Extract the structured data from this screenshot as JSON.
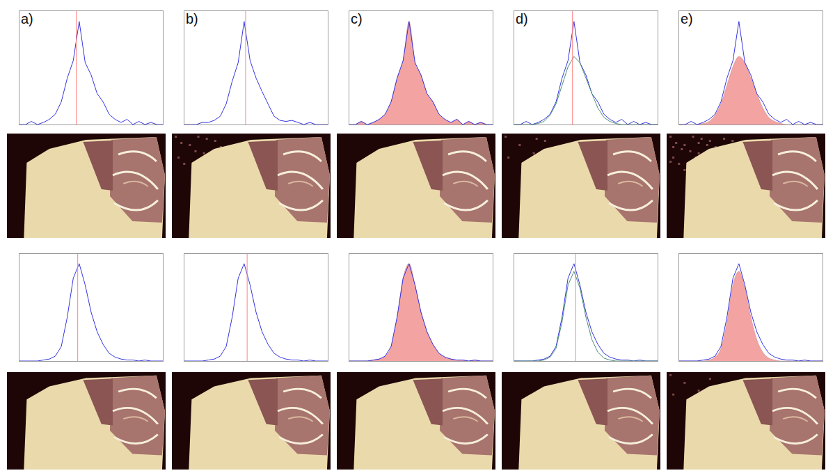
{
  "panel_labels": [
    "a)",
    "b)",
    "c)",
    "d)",
    "e)"
  ],
  "chart_data": [
    {
      "type": "line",
      "tick_labels": false,
      "xlim": [
        0,
        48
      ],
      "ylim": [
        0,
        1.1
      ],
      "x": [
        0,
        2,
        4,
        6,
        8,
        10,
        12,
        14,
        16,
        18,
        20,
        22,
        24,
        26,
        28,
        30,
        32,
        34,
        36,
        38,
        40,
        42,
        44,
        46,
        48
      ],
      "series": [
        {
          "type": "line",
          "color": "#3535e0",
          "values": [
            0,
            0,
            0.03,
            0,
            0.02,
            0.05,
            0.1,
            0.22,
            0.45,
            0.62,
            1.0,
            0.6,
            0.48,
            0.3,
            0.22,
            0.1,
            0.05,
            0.02,
            0.05,
            0,
            0.03,
            0,
            0.02,
            0,
            0
          ]
        }
      ],
      "vline": {
        "x": 19,
        "color": "#ff8080"
      }
    },
    {
      "type": "line",
      "tick_labels": false,
      "xlim": [
        0,
        48
      ],
      "ylim": [
        0,
        1.1
      ],
      "x": [
        0,
        2,
        4,
        6,
        8,
        10,
        12,
        14,
        16,
        18,
        20,
        22,
        24,
        26,
        28,
        30,
        32,
        34,
        36,
        38,
        40,
        42,
        44,
        46,
        48
      ],
      "series": [
        {
          "type": "line",
          "color": "#3535e0",
          "values": [
            0,
            0,
            0,
            0.02,
            0.02,
            0.04,
            0.08,
            0.2,
            0.42,
            0.6,
            1.0,
            0.62,
            0.45,
            0.32,
            0.2,
            0.08,
            0.04,
            0.03,
            0.04,
            0.02,
            0,
            0.02,
            0,
            0,
            0
          ]
        }
      ],
      "vline": {
        "x": 20.5,
        "color": "#ff8080"
      }
    },
    {
      "type": "line",
      "tick_labels": false,
      "xlim": [
        0,
        48
      ],
      "ylim": [
        0,
        1.1
      ],
      "x": [
        0,
        2,
        4,
        6,
        8,
        10,
        12,
        14,
        16,
        18,
        20,
        22,
        24,
        26,
        28,
        30,
        32,
        34,
        36,
        38,
        40,
        42,
        44,
        46,
        48
      ],
      "series": [
        {
          "type": "area",
          "color": "#f4a3a3",
          "values": [
            0,
            0,
            0.03,
            0,
            0.02,
            0.05,
            0.1,
            0.22,
            0.45,
            0.62,
            1.0,
            0.6,
            0.48,
            0.3,
            0.22,
            0.1,
            0.05,
            0.02,
            0.05,
            0,
            0.03,
            0,
            0.02,
            0,
            0
          ]
        },
        {
          "type": "line",
          "color": "#3535e0",
          "values": [
            0,
            0,
            0.03,
            0,
            0.02,
            0.05,
            0.1,
            0.22,
            0.45,
            0.62,
            1.0,
            0.6,
            0.48,
            0.3,
            0.22,
            0.1,
            0.05,
            0.02,
            0.05,
            0,
            0.03,
            0,
            0.02,
            0,
            0
          ]
        }
      ]
    },
    {
      "type": "line",
      "tick_labels": false,
      "xlim": [
        0,
        48
      ],
      "ylim": [
        0,
        1.1
      ],
      "x": [
        0,
        2,
        4,
        6,
        8,
        10,
        12,
        14,
        16,
        18,
        20,
        22,
        24,
        26,
        28,
        30,
        32,
        34,
        36,
        38,
        40,
        42,
        44,
        46,
        48
      ],
      "series": [
        {
          "type": "line",
          "color": "#3535e0",
          "values": [
            0,
            0,
            0.03,
            0,
            0.02,
            0.05,
            0.1,
            0.22,
            0.45,
            0.62,
            1.0,
            0.6,
            0.48,
            0.3,
            0.22,
            0.1,
            0.05,
            0.02,
            0.05,
            0,
            0.03,
            0,
            0.02,
            0,
            0
          ]
        },
        {
          "type": "line",
          "color": "#4e8f78",
          "values": [
            0,
            0,
            0,
            0,
            0.01,
            0.03,
            0.09,
            0.2,
            0.38,
            0.56,
            0.66,
            0.6,
            0.45,
            0.3,
            0.16,
            0.07,
            0.03,
            0.01,
            0,
            0,
            0,
            0,
            0,
            0,
            0
          ]
        }
      ],
      "vline": {
        "x": 19.5,
        "color": "#ff8080"
      }
    },
    {
      "type": "line",
      "tick_labels": false,
      "xlim": [
        0,
        48
      ],
      "ylim": [
        0,
        1.1
      ],
      "x": [
        0,
        2,
        4,
        6,
        8,
        10,
        12,
        14,
        16,
        18,
        20,
        22,
        24,
        26,
        28,
        30,
        32,
        34,
        36,
        38,
        40,
        42,
        44,
        46,
        48
      ],
      "series": [
        {
          "type": "area",
          "color": "#f4a3a3",
          "values": [
            0,
            0,
            0,
            0,
            0.01,
            0.03,
            0.09,
            0.2,
            0.38,
            0.56,
            0.66,
            0.6,
            0.45,
            0.3,
            0.16,
            0.07,
            0.03,
            0.01,
            0,
            0,
            0,
            0,
            0,
            0,
            0
          ]
        },
        {
          "type": "line",
          "color": "#3535e0",
          "values": [
            0,
            0,
            0.03,
            0,
            0.02,
            0.05,
            0.1,
            0.22,
            0.45,
            0.62,
            1.0,
            0.6,
            0.48,
            0.3,
            0.22,
            0.1,
            0.05,
            0.02,
            0.05,
            0,
            0.03,
            0,
            0.02,
            0,
            0
          ]
        }
      ]
    },
    {
      "type": "line",
      "tick_labels": false,
      "xlim": [
        0,
        48
      ],
      "ylim": [
        0,
        1.1
      ],
      "x": [
        0,
        2,
        4,
        6,
        8,
        10,
        12,
        14,
        16,
        18,
        20,
        22,
        24,
        26,
        28,
        30,
        32,
        34,
        36,
        38,
        40,
        42,
        44,
        46,
        48
      ],
      "series": [
        {
          "type": "line",
          "color": "#3535e0",
          "values": [
            0,
            0,
            0,
            0,
            0.01,
            0.02,
            0.05,
            0.15,
            0.45,
            0.85,
            1.0,
            0.78,
            0.5,
            0.3,
            0.17,
            0.08,
            0.04,
            0.02,
            0.01,
            0.01,
            0,
            0.01,
            0,
            0,
            0
          ]
        }
      ],
      "vline": {
        "x": 19.5,
        "color": "#ff8080"
      }
    },
    {
      "type": "line",
      "tick_labels": false,
      "xlim": [
        0,
        48
      ],
      "ylim": [
        0,
        1.1
      ],
      "x": [
        0,
        2,
        4,
        6,
        8,
        10,
        12,
        14,
        16,
        18,
        20,
        22,
        24,
        26,
        28,
        30,
        32,
        34,
        36,
        38,
        40,
        42,
        44,
        46,
        48
      ],
      "series": [
        {
          "type": "line",
          "color": "#3535e0",
          "values": [
            0,
            0,
            0,
            0,
            0.01,
            0.02,
            0.05,
            0.15,
            0.45,
            0.85,
            1.0,
            0.78,
            0.5,
            0.3,
            0.17,
            0.08,
            0.04,
            0.02,
            0.01,
            0.01,
            0,
            0.01,
            0,
            0,
            0
          ]
        }
      ],
      "vline": {
        "x": 21,
        "color": "#ff8080"
      }
    },
    {
      "type": "line",
      "tick_labels": false,
      "xlim": [
        0,
        48
      ],
      "ylim": [
        0,
        1.1
      ],
      "x": [
        0,
        2,
        4,
        6,
        8,
        10,
        12,
        14,
        16,
        18,
        20,
        22,
        24,
        26,
        28,
        30,
        32,
        34,
        36,
        38,
        40,
        42,
        44,
        46,
        48
      ],
      "series": [
        {
          "type": "area",
          "color": "#f4a3a3",
          "values": [
            0,
            0,
            0,
            0,
            0.01,
            0.02,
            0.05,
            0.15,
            0.45,
            0.85,
            1.0,
            0.78,
            0.5,
            0.3,
            0.17,
            0.08,
            0.04,
            0.02,
            0.01,
            0.01,
            0,
            0.01,
            0,
            0,
            0
          ]
        },
        {
          "type": "line",
          "color": "#3535e0",
          "values": [
            0,
            0,
            0,
            0,
            0.01,
            0.02,
            0.05,
            0.15,
            0.45,
            0.85,
            1.0,
            0.78,
            0.5,
            0.3,
            0.17,
            0.08,
            0.04,
            0.02,
            0.01,
            0.01,
            0,
            0.01,
            0,
            0,
            0
          ]
        }
      ]
    },
    {
      "type": "line",
      "tick_labels": false,
      "xlim": [
        0,
        48
      ],
      "ylim": [
        0,
        1.1
      ],
      "x": [
        0,
        2,
        4,
        6,
        8,
        10,
        12,
        14,
        16,
        18,
        20,
        22,
        24,
        26,
        28,
        30,
        32,
        34,
        36,
        38,
        40,
        42,
        44,
        46,
        48
      ],
      "series": [
        {
          "type": "line",
          "color": "#3535e0",
          "values": [
            0,
            0,
            0,
            0,
            0.01,
            0.02,
            0.05,
            0.15,
            0.45,
            0.85,
            1.0,
            0.78,
            0.5,
            0.3,
            0.17,
            0.08,
            0.04,
            0.02,
            0.01,
            0.01,
            0,
            0.01,
            0,
            0,
            0
          ]
        },
        {
          "type": "line",
          "color": "#4e8f78",
          "values": [
            0,
            0,
            0,
            0,
            0,
            0.01,
            0.04,
            0.13,
            0.4,
            0.78,
            0.92,
            0.75,
            0.45,
            0.22,
            0.09,
            0.03,
            0.01,
            0,
            0,
            0,
            0,
            0,
            0,
            0,
            0
          ]
        }
      ],
      "vline": {
        "x": 20.5,
        "color": "#ff8080"
      }
    },
    {
      "type": "line",
      "tick_labels": false,
      "xlim": [
        0,
        48
      ],
      "ylim": [
        0,
        1.1
      ],
      "x": [
        0,
        2,
        4,
        6,
        8,
        10,
        12,
        14,
        16,
        18,
        20,
        22,
        24,
        26,
        28,
        30,
        32,
        34,
        36,
        38,
        40,
        42,
        44,
        46,
        48
      ],
      "series": [
        {
          "type": "area",
          "color": "#f4a3a3",
          "values": [
            0,
            0,
            0,
            0,
            0,
            0.01,
            0.04,
            0.13,
            0.4,
            0.78,
            0.92,
            0.75,
            0.45,
            0.22,
            0.09,
            0.03,
            0.01,
            0,
            0,
            0,
            0,
            0,
            0,
            0,
            0
          ]
        },
        {
          "type": "line",
          "color": "#3535e0",
          "values": [
            0,
            0,
            0,
            0,
            0.01,
            0.02,
            0.05,
            0.15,
            0.45,
            0.85,
            1.0,
            0.78,
            0.5,
            0.3,
            0.17,
            0.08,
            0.04,
            0.02,
            0.01,
            0.01,
            0,
            0.01,
            0,
            0,
            0
          ]
        }
      ]
    }
  ]
}
